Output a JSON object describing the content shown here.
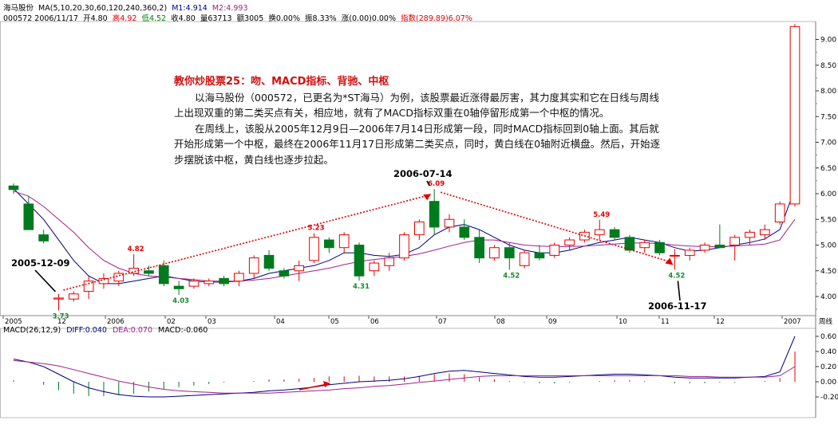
{
  "header": {
    "line1": {
      "stock": "海马股份",
      "ma": "MA(5,10,20,30,60,120,240,360,2)",
      "m1": "M1:4.914",
      "m2": "M2:4.993"
    },
    "line2": {
      "code_date": "000572 2006/11/17",
      "open": "开4.80",
      "high": "高4.92",
      "low": "低4.52",
      "close": "收4.80",
      "volume": "量63713",
      "amount": "额3005",
      "turnover": "换0.00%",
      "amplitude": "振8.33%",
      "change": "涨(0.00)0.00%",
      "index": "指数(289.89)6.07%"
    }
  },
  "caption": {
    "title": "教你炒股票25：吻、MACD指标、背驰、中枢",
    "p1": "以海马股份（000572，已更名为*ST海马）为例，该股票最近涨得最厉害，其力度其实和它在日线与周线上出现双重的第二类买点有关，相应地，就有了MACD指标双重在0轴停留形成第一个中枢的情况。",
    "p2": "在周线上，该股从2005年12月9日—2006年7月14日形成第一段，同时MACD指标回到0轴上面。其后就开始形成第一个中枢，最终在2006年11月17日形成第二类买点，同时，黄白线在0轴附近横盘。然后，开始逐步摆脱该中枢，黄白线也逐步拉起。"
  },
  "macd_header": {
    "name": "MACD(26,12,9)",
    "diff": "DIFF:0.040",
    "dea": "DEA:0.070",
    "macd": "MACD:-0.060"
  },
  "chart_data": [
    {
      "type": "candlestick",
      "title": "",
      "ylim": [
        3.8,
        9.4
      ],
      "y_ticks": [
        4.0,
        4.5,
        5.0,
        5.5,
        6.0,
        6.5,
        7.0,
        7.5,
        8.0,
        8.5,
        9.0
      ],
      "x_tick_labels": [
        "2005",
        "12",
        "2006",
        "02",
        "03",
        "04",
        "05",
        "06",
        "07",
        "08",
        "09",
        "10",
        "11",
        "12",
        "2007"
      ],
      "x_unit_label": "周线",
      "candles": [
        {
          "o": 6.15,
          "h": 6.2,
          "l": 6.0,
          "c": 6.08
        },
        {
          "o": 5.8,
          "h": 5.95,
          "l": 5.3,
          "c": 5.3
        },
        {
          "o": 5.2,
          "h": 5.3,
          "l": 5.03,
          "c": 5.08
        },
        {
          "o": 3.95,
          "h": 4.05,
          "l": 3.73,
          "c": 3.97
        },
        {
          "o": 3.95,
          "h": 4.1,
          "l": 3.9,
          "c": 4.05
        },
        {
          "o": 4.1,
          "h": 4.4,
          "l": 3.95,
          "c": 4.3
        },
        {
          "o": 4.25,
          "h": 4.45,
          "l": 4.15,
          "c": 4.35
        },
        {
          "o": 4.3,
          "h": 4.5,
          "l": 4.2,
          "c": 4.45
        },
        {
          "o": 4.45,
          "h": 4.82,
          "l": 4.4,
          "c": 4.55
        },
        {
          "o": 4.5,
          "h": 4.6,
          "l": 4.4,
          "c": 4.45
        },
        {
          "o": 4.6,
          "h": 4.7,
          "l": 4.2,
          "c": 4.25
        },
        {
          "o": 4.2,
          "h": 4.3,
          "l": 4.03,
          "c": 4.15
        },
        {
          "o": 4.2,
          "h": 4.35,
          "l": 4.15,
          "c": 4.3
        },
        {
          "o": 4.25,
          "h": 4.35,
          "l": 4.2,
          "c": 4.3
        },
        {
          "o": 4.35,
          "h": 4.4,
          "l": 4.2,
          "c": 4.25
        },
        {
          "o": 4.3,
          "h": 4.5,
          "l": 4.2,
          "c": 4.45
        },
        {
          "o": 4.45,
          "h": 4.8,
          "l": 4.35,
          "c": 4.75
        },
        {
          "o": 4.8,
          "h": 4.9,
          "l": 4.5,
          "c": 4.55
        },
        {
          "o": 4.5,
          "h": 4.55,
          "l": 4.35,
          "c": 4.4
        },
        {
          "o": 4.5,
          "h": 4.7,
          "l": 4.3,
          "c": 4.6
        },
        {
          "o": 4.7,
          "h": 5.23,
          "l": 4.65,
          "c": 5.15
        },
        {
          "o": 5.1,
          "h": 5.15,
          "l": 4.85,
          "c": 4.95
        },
        {
          "o": 4.95,
          "h": 5.25,
          "l": 4.85,
          "c": 5.2
        },
        {
          "o": 5.0,
          "h": 5.05,
          "l": 4.31,
          "c": 4.4
        },
        {
          "o": 4.5,
          "h": 4.7,
          "l": 4.4,
          "c": 4.65
        },
        {
          "o": 4.6,
          "h": 4.85,
          "l": 4.5,
          "c": 4.75
        },
        {
          "o": 4.75,
          "h": 5.25,
          "l": 4.7,
          "c": 5.2
        },
        {
          "o": 5.2,
          "h": 5.5,
          "l": 5.1,
          "c": 5.45
        },
        {
          "o": 5.85,
          "h": 6.09,
          "l": 5.2,
          "c": 5.35
        },
        {
          "o": 5.35,
          "h": 5.6,
          "l": 5.25,
          "c": 5.5
        },
        {
          "o": 5.35,
          "h": 5.5,
          "l": 5.1,
          "c": 5.15
        },
        {
          "o": 5.15,
          "h": 5.3,
          "l": 4.65,
          "c": 4.75
        },
        {
          "o": 4.75,
          "h": 5.0,
          "l": 4.7,
          "c": 4.95
        },
        {
          "o": 4.95,
          "h": 5.05,
          "l": 4.52,
          "c": 4.75
        },
        {
          "o": 4.6,
          "h": 4.9,
          "l": 4.55,
          "c": 4.85
        },
        {
          "o": 4.85,
          "h": 5.0,
          "l": 4.7,
          "c": 4.75
        },
        {
          "o": 4.8,
          "h": 5.05,
          "l": 4.75,
          "c": 5.0
        },
        {
          "o": 5.0,
          "h": 5.15,
          "l": 4.9,
          "c": 5.1
        },
        {
          "o": 5.1,
          "h": 5.3,
          "l": 5.05,
          "c": 5.25
        },
        {
          "o": 5.2,
          "h": 5.49,
          "l": 5.1,
          "c": 5.3
        },
        {
          "o": 5.3,
          "h": 5.35,
          "l": 5.1,
          "c": 5.15
        },
        {
          "o": 5.15,
          "h": 5.2,
          "l": 4.85,
          "c": 4.9
        },
        {
          "o": 4.95,
          "h": 5.1,
          "l": 4.85,
          "c": 5.05
        },
        {
          "o": 5.05,
          "h": 5.1,
          "l": 4.8,
          "c": 4.85
        },
        {
          "o": 4.8,
          "h": 4.92,
          "l": 4.52,
          "c": 4.8
        },
        {
          "o": 4.8,
          "h": 4.95,
          "l": 4.7,
          "c": 4.9
        },
        {
          "o": 4.9,
          "h": 5.05,
          "l": 4.85,
          "c": 5.0
        },
        {
          "o": 5.0,
          "h": 5.4,
          "l": 4.95,
          "c": 4.95
        },
        {
          "o": 5.0,
          "h": 5.2,
          "l": 4.7,
          "c": 5.15
        },
        {
          "o": 5.15,
          "h": 5.3,
          "l": 5.0,
          "c": 5.25
        },
        {
          "o": 5.2,
          "h": 5.4,
          "l": 5.1,
          "c": 5.3
        },
        {
          "o": 5.45,
          "h": 5.85,
          "l": 5.4,
          "c": 5.8
        },
        {
          "o": 5.8,
          "h": 9.3,
          "l": 5.75,
          "c": 9.25
        }
      ],
      "ma_lines": [
        {
          "name": "M1",
          "color": "#000080",
          "values": [
            6.1,
            5.8,
            5.5,
            5.1,
            4.7,
            4.4,
            4.25,
            4.25,
            4.3,
            4.35,
            4.4,
            4.35,
            4.3,
            4.28,
            4.28,
            4.3,
            4.35,
            4.45,
            4.5,
            4.55,
            4.6,
            4.7,
            4.85,
            4.85,
            4.8,
            4.78,
            4.82,
            4.95,
            5.2,
            5.35,
            5.4,
            5.3,
            5.15,
            5.0,
            4.9,
            4.85,
            4.85,
            4.9,
            4.98,
            5.05,
            5.1,
            5.15,
            5.1,
            5.05,
            4.95,
            4.88,
            4.9,
            4.95,
            5.0,
            5.05,
            5.12,
            5.3,
            6.1
          ]
        },
        {
          "name": "M2",
          "color": "#a0208c",
          "values": [
            6.05,
            5.95,
            5.75,
            5.5,
            5.25,
            4.95,
            4.7,
            4.55,
            4.45,
            4.4,
            4.38,
            4.35,
            4.33,
            4.3,
            4.3,
            4.3,
            4.32,
            4.35,
            4.4,
            4.45,
            4.5,
            4.55,
            4.62,
            4.68,
            4.72,
            4.75,
            4.78,
            4.83,
            4.9,
            4.98,
            5.05,
            5.1,
            5.1,
            5.05,
            5.0,
            4.98,
            4.97,
            4.97,
            4.98,
            5.0,
            5.02,
            5.04,
            5.04,
            5.03,
            5.0,
            4.98,
            4.97,
            4.97,
            4.98,
            5.0,
            5.02,
            5.1,
            5.5
          ]
        }
      ],
      "price_labels": [
        "3.73",
        "4.82",
        "4.03",
        "5.23",
        "4.31",
        "6.09",
        "4.52",
        "5.49",
        "4.52"
      ],
      "annotations": [
        "2005-12-09",
        "2006-07-14",
        "2006-11-17"
      ]
    },
    {
      "type": "line",
      "title": "MACD(26,12,9)",
      "ylim": [
        -0.25,
        0.65
      ],
      "y_ticks": [
        0.6,
        0.4,
        0.2,
        0.0,
        -0.2
      ],
      "y_tick_labels": [
        "0.60",
        "0.40",
        "0.20",
        "0.00",
        "-0.20"
      ],
      "series": [
        {
          "name": "DIFF",
          "color": "#000080",
          "values": [
            0.3,
            0.26,
            0.2,
            0.1,
            0.0,
            -0.08,
            -0.13,
            -0.17,
            -0.19,
            -0.2,
            -0.2,
            -0.19,
            -0.18,
            -0.17,
            -0.16,
            -0.15,
            -0.14,
            -0.12,
            -0.11,
            -0.09,
            -0.07,
            -0.04,
            -0.02,
            0.0,
            0.01,
            0.02,
            0.04,
            0.07,
            0.11,
            0.14,
            0.15,
            0.13,
            0.11,
            0.09,
            0.07,
            0.06,
            0.06,
            0.07,
            0.08,
            0.09,
            0.1,
            0.1,
            0.09,
            0.08,
            0.06,
            0.05,
            0.05,
            0.05,
            0.05,
            0.06,
            0.07,
            0.13,
            0.6
          ]
        },
        {
          "name": "DEA",
          "color": "#a0208c",
          "values": [
            0.28,
            0.26,
            0.24,
            0.21,
            0.16,
            0.11,
            0.06,
            0.01,
            -0.03,
            -0.07,
            -0.1,
            -0.12,
            -0.13,
            -0.14,
            -0.15,
            -0.15,
            -0.15,
            -0.15,
            -0.14,
            -0.13,
            -0.12,
            -0.11,
            -0.09,
            -0.08,
            -0.06,
            -0.05,
            -0.03,
            -0.01,
            0.01,
            0.03,
            0.05,
            0.07,
            0.08,
            0.08,
            0.08,
            0.08,
            0.08,
            0.08,
            0.08,
            0.08,
            0.08,
            0.08,
            0.08,
            0.08,
            0.08,
            0.07,
            0.07,
            0.06,
            0.06,
            0.06,
            0.06,
            0.08,
            0.2
          ]
        }
      ]
    }
  ]
}
